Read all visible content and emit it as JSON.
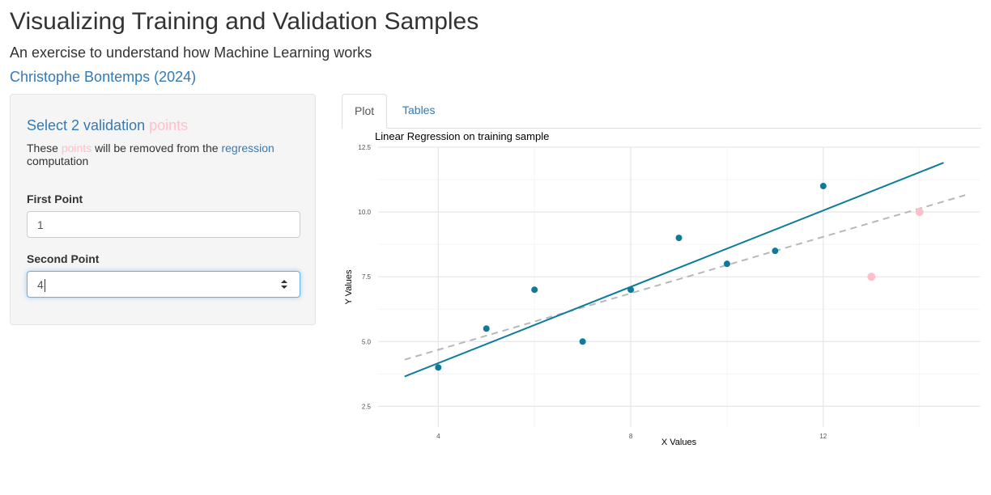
{
  "header": {
    "title": "Visualizing Training and Validation Samples",
    "subtitle": "An exercise to understand how Machine Learning works",
    "author": "Christophe Bontemps (2024)"
  },
  "sidebar": {
    "heading_prefix": "Select 2 validation",
    "heading_pink": "points",
    "desc_prefix": "These",
    "desc_pink": "points",
    "desc_mid": "will be removed from the",
    "desc_blue": "regression",
    "desc_suffix": "computation",
    "first_label": "First Point",
    "first_value": "1",
    "second_label": "Second Point",
    "second_value": "4"
  },
  "tabs": [
    {
      "label": "Plot",
      "active": true
    },
    {
      "label": "Tables",
      "active": false
    }
  ],
  "colors": {
    "training": "#0f7b9a",
    "validation": "#ffc0cb",
    "fit_line": "#0f7b9a",
    "dashed_line": "#b8b8b8",
    "accent": "#337ab7"
  },
  "chart_data": {
    "type": "scatter",
    "title": "Linear Regression on training sample",
    "xlabel": "X Values",
    "ylabel": "Y Values",
    "xlim": [
      2.75,
      15.25
    ],
    "ylim": [
      1.7,
      12.5
    ],
    "xticks": [
      4,
      8,
      12
    ],
    "yticks": [
      2.5,
      5.0,
      7.5,
      10.0,
      12.5
    ],
    "grid": true,
    "series": [
      {
        "points": [
          [
            4,
            4
          ],
          [
            5,
            5.5
          ],
          [
            6,
            7
          ],
          [
            7,
            5
          ],
          [
            8,
            7
          ],
          [
            9,
            9
          ],
          [
            10,
            8
          ],
          [
            11,
            8.5
          ],
          [
            12,
            11
          ]
        ]
      },
      {
        "points": [
          [
            13,
            7.5
          ],
          [
            14,
            10
          ]
        ]
      }
    ],
    "lines": [
      {
        "x": [
          3.3,
          14.5
        ],
        "y": [
          3.65,
          11.9
        ]
      },
      {
        "x": [
          3.3,
          14.95
        ],
        "y": [
          4.3,
          10.65
        ]
      }
    ]
  }
}
